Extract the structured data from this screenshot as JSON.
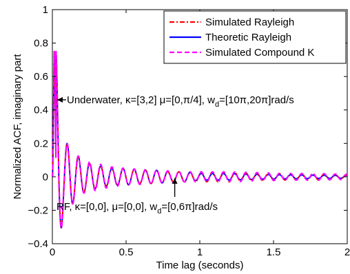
{
  "chart_data": {
    "type": "line",
    "xlabel": "Time lag (seconds)",
    "ylabel": "Normalized ACF, imaginary part",
    "xlim": [
      0,
      2
    ],
    "ylim": [
      -0.4,
      1
    ],
    "x_ticks": [
      0,
      0.5,
      1,
      1.5,
      2
    ],
    "x_tick_labels": [
      "0",
      "0.5",
      "1",
      "1.5",
      "2"
    ],
    "y_ticks": [
      -0.4,
      -0.2,
      0,
      0.2,
      0.4,
      0.6,
      0.8,
      1
    ],
    "y_tick_labels": [
      "−0.4",
      "−0.2",
      "0",
      "0.2",
      "0.4",
      "0.6",
      "0.8",
      "1"
    ],
    "grid": false,
    "legend": "top-right",
    "series": [
      {
        "name": "Simulated Rayleigh",
        "color": "#ff0000",
        "style": "dash-dot",
        "x": [
          0,
          0.025,
          0.05,
          0.075,
          0.1,
          0.15,
          0.2,
          0.25,
          0.3,
          0.35,
          0.4,
          0.5,
          0.6,
          0.7,
          0.8,
          0.9,
          1.0,
          1.2,
          1.4,
          1.6,
          1.8,
          2.0
        ],
        "y": [
          0,
          0.75,
          -0.37,
          0.23,
          -0.2,
          0.15,
          -0.1,
          0.08,
          -0.07,
          0.06,
          0.05,
          -0.05,
          0.04,
          -0.04,
          0.03,
          -0.03,
          0.03,
          -0.03,
          0.02,
          -0.02,
          0.02,
          0.01
        ],
        "envelope_note": "damped oscillation about 0"
      },
      {
        "name": "Theoretic Rayleigh",
        "color": "#0000ff",
        "style": "solid",
        "x": [
          0,
          0.025,
          0.05,
          0.075,
          0.1,
          0.15,
          0.2,
          0.25,
          0.3,
          0.35,
          0.4,
          0.5,
          0.6,
          0.7,
          0.8,
          0.9,
          1.0,
          1.2,
          1.4,
          1.6,
          1.8,
          2.0
        ],
        "y": [
          0,
          0.75,
          -0.37,
          0.23,
          -0.2,
          0.15,
          -0.1,
          0.08,
          -0.07,
          0.06,
          0.05,
          -0.05,
          0.04,
          -0.04,
          0.03,
          -0.03,
          0.02,
          -0.02,
          0.015,
          -0.012,
          0.01,
          0.008
        ]
      },
      {
        "name": "Simulated Compound K",
        "color": "#ff00ff",
        "style": "dashed",
        "x": [
          0,
          0.025,
          0.05,
          0.075,
          0.1,
          0.15,
          0.2,
          0.25,
          0.3,
          0.35,
          0.4,
          0.5,
          0.6,
          0.7,
          0.8,
          0.9,
          1.0,
          1.2,
          1.4,
          1.6,
          1.8,
          2.0
        ],
        "y": [
          0,
          0.75,
          -0.37,
          0.23,
          -0.2,
          0.15,
          -0.1,
          0.09,
          -0.08,
          0.07,
          0.06,
          -0.05,
          0.045,
          -0.04,
          0.035,
          -0.03,
          0.03,
          -0.03,
          0.025,
          -0.02,
          0.02,
          0.015
        ]
      }
    ],
    "annotations": [
      {
        "text_parts": [
          "Underwater, κ=[3,2] μ=[0,π/4], w",
          "d",
          "=[10π,20π]rad/s"
        ],
        "points_to": [
          0.0,
          0.45
        ],
        "arrow": true
      },
      {
        "text_parts": [
          "RF, κ=[0,0], μ=[0,0], w",
          "d",
          "=[0,6π]rad/s"
        ],
        "points_to": [
          0.83,
          0.0
        ],
        "arrow": true
      }
    ]
  }
}
